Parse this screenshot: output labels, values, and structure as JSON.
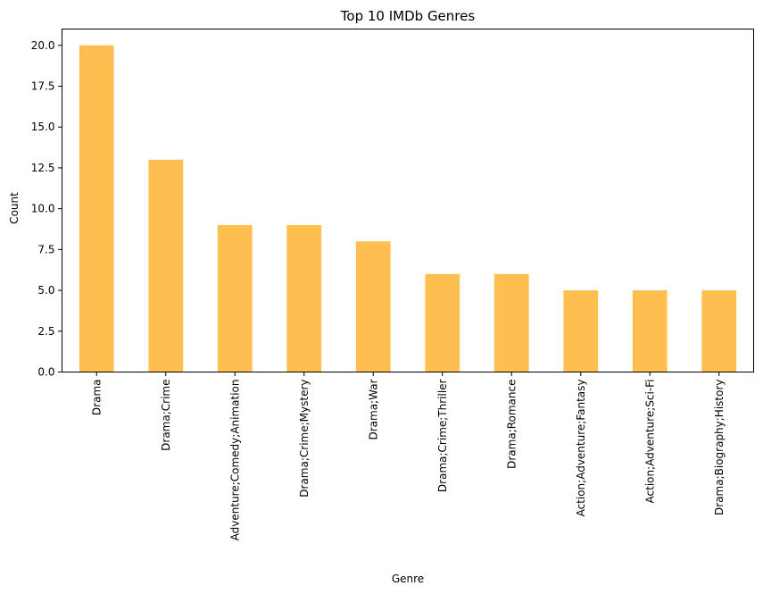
{
  "chart_data": {
    "type": "bar",
    "title": "Top 10 IMDb Genres",
    "xlabel": "Genre",
    "ylabel": "Count",
    "categories": [
      "Drama",
      "Drama;Crime",
      "Adventure;Comedy;Animation",
      "Drama;Crime;Mystery",
      "Drama;War",
      "Drama;Crime;Thriller",
      "Drama;Romance",
      "Action;Adventure;Fantasy",
      "Action;Adventure;Sci-Fi",
      "Drama;Biography;History"
    ],
    "values": [
      20,
      13,
      9,
      9,
      8,
      6,
      6,
      5,
      5,
      5
    ],
    "ylim": [
      0,
      21
    ],
    "yticks": [
      "0.0",
      "2.5",
      "5.0",
      "7.5",
      "10.0",
      "12.5",
      "15.0",
      "17.5",
      "20.0"
    ],
    "grid": false,
    "legend": "none",
    "bar_color": "#fdbf4f"
  }
}
